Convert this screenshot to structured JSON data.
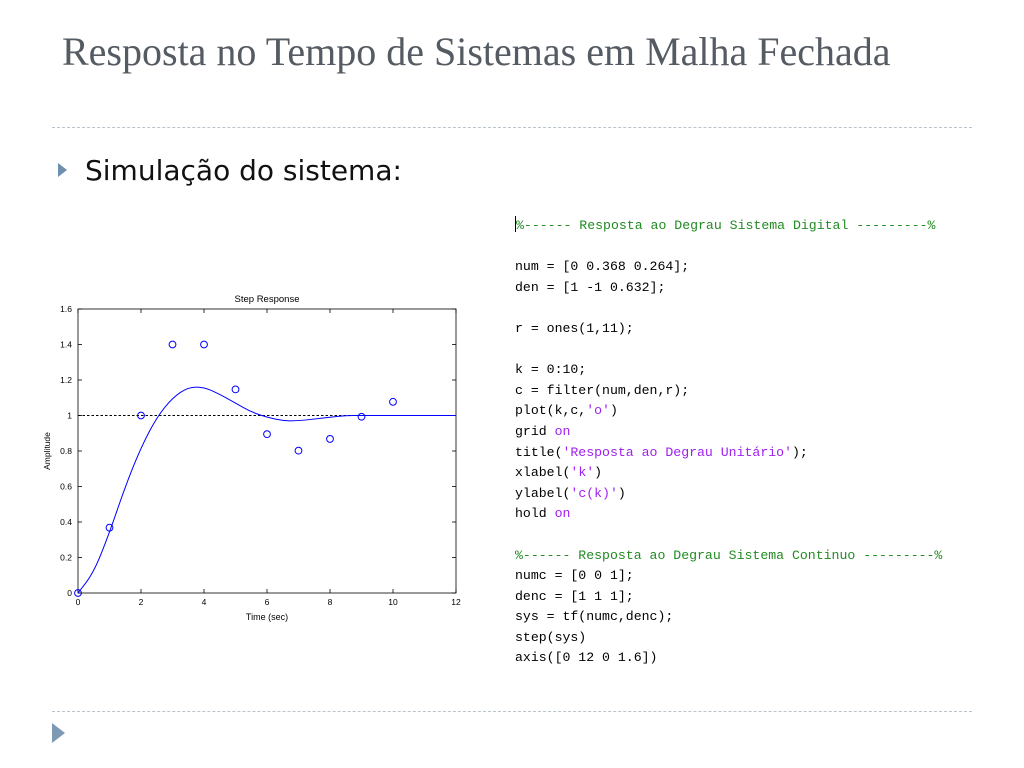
{
  "slide": {
    "title": "Resposta no Tempo de Sistemas em Malha Fechada",
    "bullet": "Simulação do sistema:"
  },
  "colors": {
    "title": "#555b63",
    "bullet_arrow": "#6f8fae",
    "plot_line": "#0000ff",
    "code_comment": "#228b22",
    "code_string": "#a020f0"
  },
  "chart_data": {
    "type": "line",
    "title": "Step Response",
    "xlabel": "Time (sec)",
    "ylabel": "Amplitude",
    "xlim": [
      0,
      12
    ],
    "ylim": [
      0,
      1.6
    ],
    "xticks": [
      0,
      2,
      4,
      6,
      8,
      10,
      12
    ],
    "yticks": [
      0,
      0.2,
      0.4,
      0.6,
      0.8,
      1,
      1.2,
      1.4,
      1.6
    ],
    "xtick_labels": [
      "0",
      "2",
      "4",
      "6",
      "8",
      "10",
      "12"
    ],
    "ytick_labels": [
      "0",
      "0.2",
      "0.4",
      "0.6",
      "0.8",
      "1",
      "1.2",
      "1.4",
      "1.6"
    ],
    "grid": false,
    "reference_line": {
      "y": 1,
      "style": "dashed"
    },
    "series": [
      {
        "kind": "scatter",
        "marker": "o",
        "x": [
          0,
          1,
          2,
          3,
          4,
          5,
          6,
          7,
          8,
          9,
          10
        ],
        "y": [
          0,
          0.368,
          1.0,
          1.4,
          1.4,
          1.147,
          0.895,
          0.802,
          0.868,
          0.993,
          1.077
        ]
      },
      {
        "kind": "line",
        "x": [
          0,
          0.5,
          1,
          1.5,
          2,
          2.5,
          3,
          3.5,
          4,
          4.5,
          5,
          5.5,
          6,
          6.5,
          7,
          7.5,
          8,
          8.5,
          9,
          9.5,
          10,
          10.5,
          11,
          11.5,
          12
        ],
        "y": [
          0,
          0.115,
          0.34,
          0.6,
          0.82,
          0.99,
          1.1,
          1.16,
          1.16,
          1.12,
          1.07,
          1.02,
          0.99,
          0.97,
          0.97,
          0.98,
          0.99,
          1.0,
          1.0,
          1.0,
          1.0,
          1.0,
          1.0,
          1.0,
          1.0
        ]
      }
    ]
  },
  "code": {
    "lines": [
      [
        {
          "t": "%------ Resposta ao Degrau Sistema Digital ---------%",
          "c": "cmt"
        }
      ],
      [],
      [
        {
          "t": "num = [0 0.368 0.264];",
          "c": ""
        }
      ],
      [
        {
          "t": "den = [1 -1 0.632];",
          "c": ""
        }
      ],
      [],
      [
        {
          "t": "r = ones(1,11);",
          "c": ""
        }
      ],
      [],
      [
        {
          "t": "k = 0:10;",
          "c": ""
        }
      ],
      [
        {
          "t": "c = filter(num,den,r);",
          "c": ""
        }
      ],
      [
        {
          "t": "plot(k,c,",
          "c": ""
        },
        {
          "t": "'o'",
          "c": "str"
        },
        {
          "t": ")",
          "c": ""
        }
      ],
      [
        {
          "t": "grid ",
          "c": ""
        },
        {
          "t": "on",
          "c": "kw"
        }
      ],
      [
        {
          "t": "title(",
          "c": ""
        },
        {
          "t": "'Resposta ao Degrau Unitário'",
          "c": "str"
        },
        {
          "t": ");",
          "c": ""
        }
      ],
      [
        {
          "t": "xlabel(",
          "c": ""
        },
        {
          "t": "'k'",
          "c": "str"
        },
        {
          "t": ")",
          "c": ""
        }
      ],
      [
        {
          "t": "ylabel(",
          "c": ""
        },
        {
          "t": "'c(k)'",
          "c": "str"
        },
        {
          "t": ")",
          "c": ""
        }
      ],
      [
        {
          "t": "hold ",
          "c": ""
        },
        {
          "t": "on",
          "c": "kw"
        }
      ],
      [],
      [
        {
          "t": "%------ Resposta ao Degrau Sistema Continuo ---------%",
          "c": "cmt"
        }
      ],
      [
        {
          "t": "numc = [0 0 1];",
          "c": ""
        }
      ],
      [
        {
          "t": "denc = [1 1 1];",
          "c": ""
        }
      ],
      [
        {
          "t": "sys = tf(numc,denc);",
          "c": ""
        }
      ],
      [
        {
          "t": "step(sys)",
          "c": ""
        }
      ],
      [
        {
          "t": "axis([0 12 0 1.6])",
          "c": ""
        }
      ]
    ]
  }
}
